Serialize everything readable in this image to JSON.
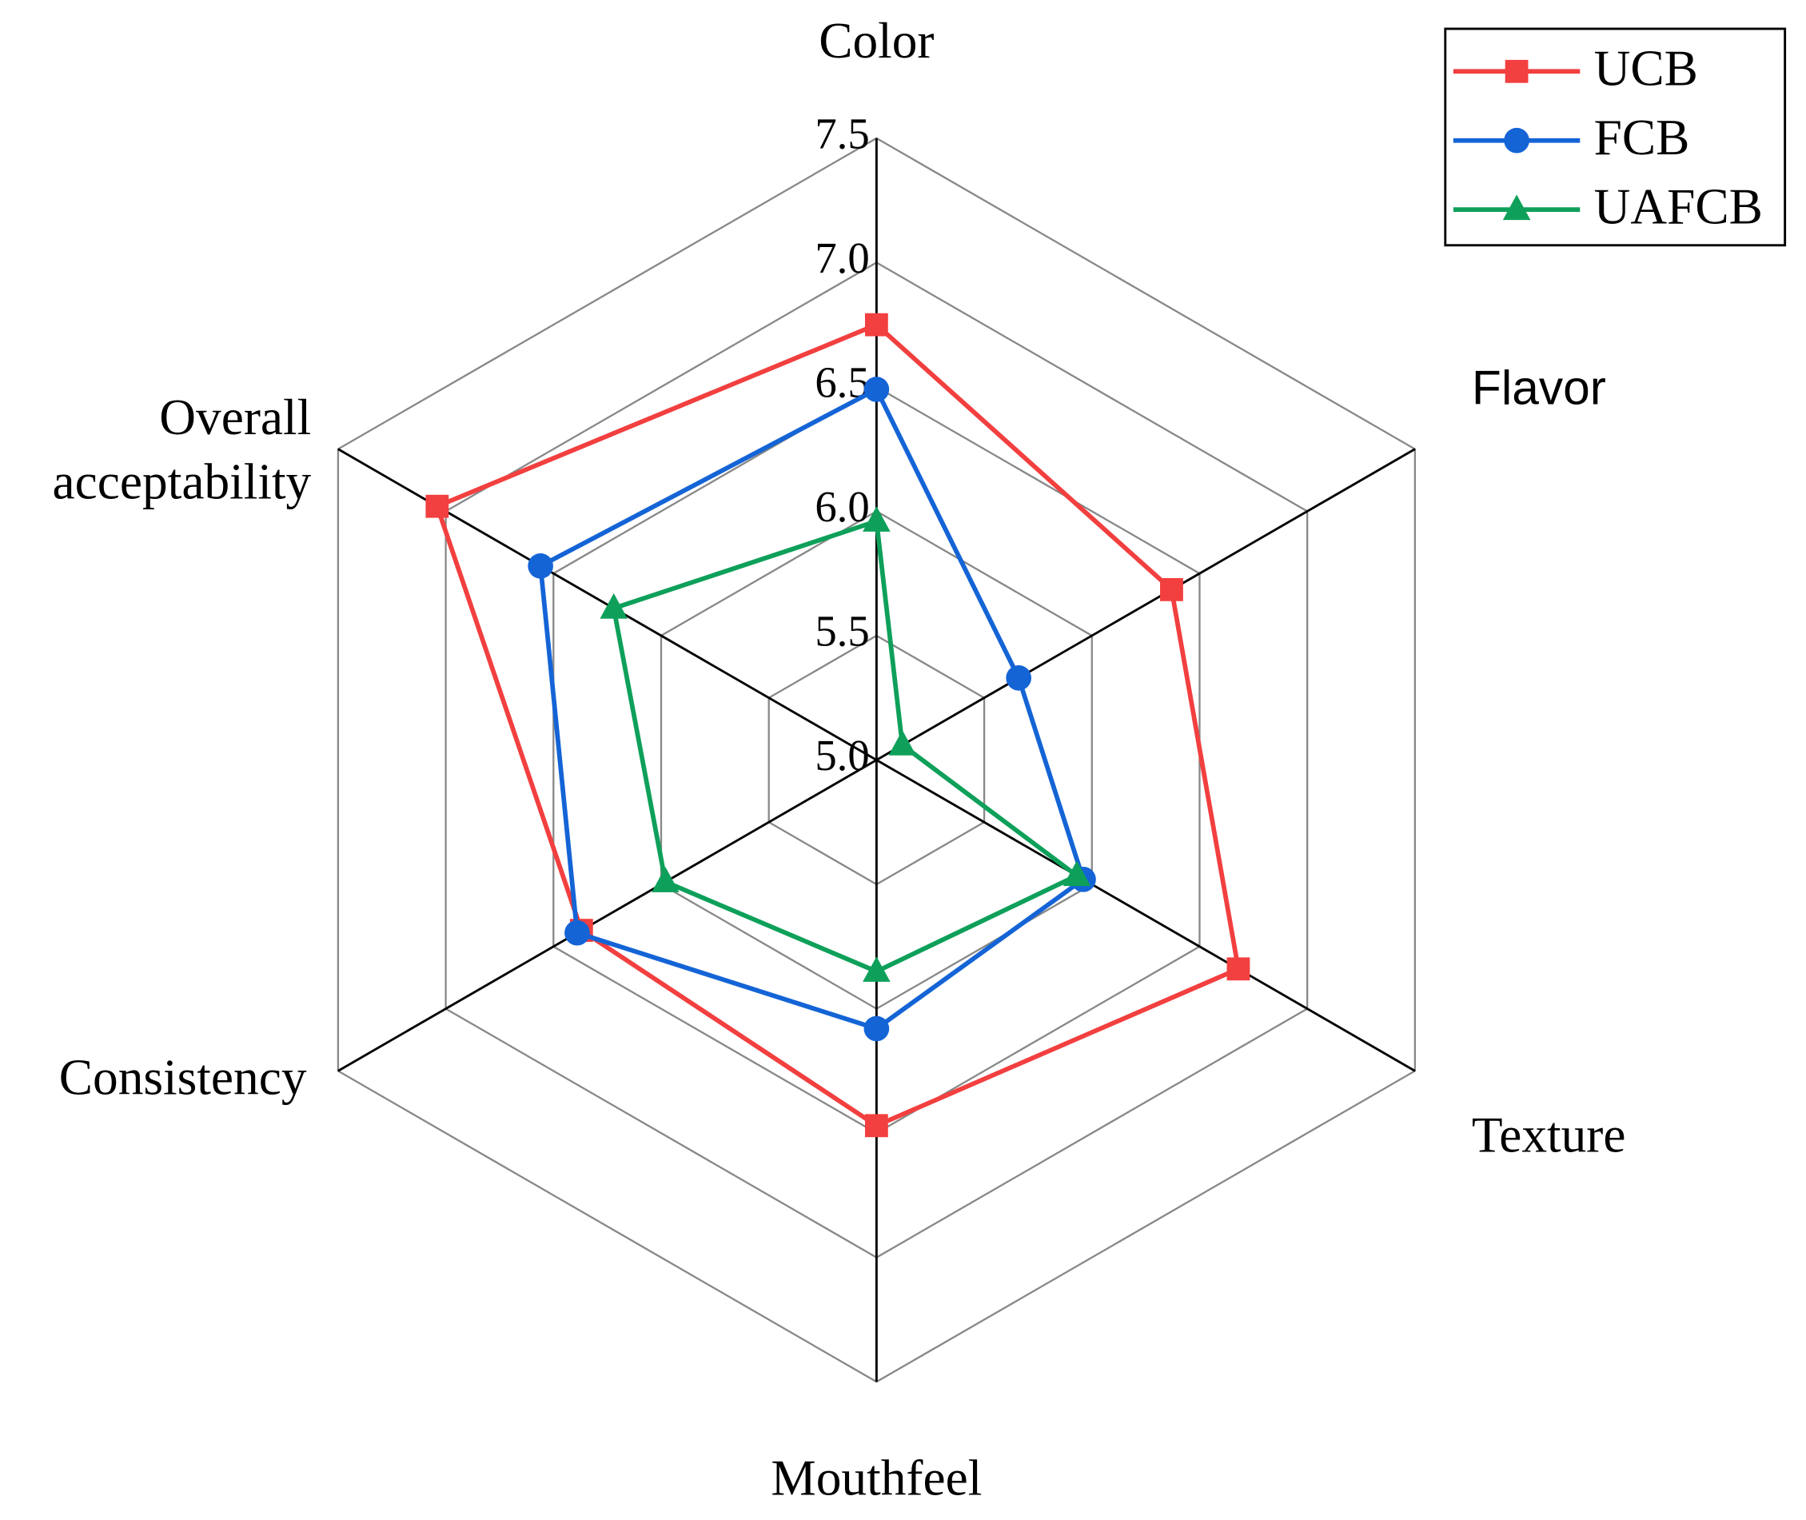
{
  "chart_data": {
    "type": "radar",
    "categories": [
      "Color",
      "Flavor",
      "Texture",
      "Mouthfeel",
      "Consistency",
      "Overall acceptability"
    ],
    "ylim": [
      5,
      7.5
    ],
    "yticks": [
      {
        "value": 5,
        "label": "5.0"
      },
      5.5,
      {
        "value": 6,
        "label": "6.0"
      },
      6.5,
      {
        "value": 7,
        "label": "7.0"
      },
      7.5
    ],
    "grid": true,
    "legend": "upper right",
    "series": [
      {
        "name": "UCB",
        "color": "#f23f3f",
        "marker": "square",
        "values": [
          6.75,
          6.37,
          6.68,
          6.47,
          6.37,
          7.04
        ]
      },
      {
        "name": "FCB",
        "color": "#1464d6",
        "marker": "circle",
        "values": [
          6.49,
          5.66,
          5.96,
          6.08,
          6.39,
          6.56
        ]
      },
      {
        "name": "UAFCB",
        "color": "#0ea05a",
        "marker": "triangle",
        "values": [
          5.96,
          5.12,
          5.93,
          5.85,
          5.98,
          6.22
        ]
      }
    ]
  }
}
